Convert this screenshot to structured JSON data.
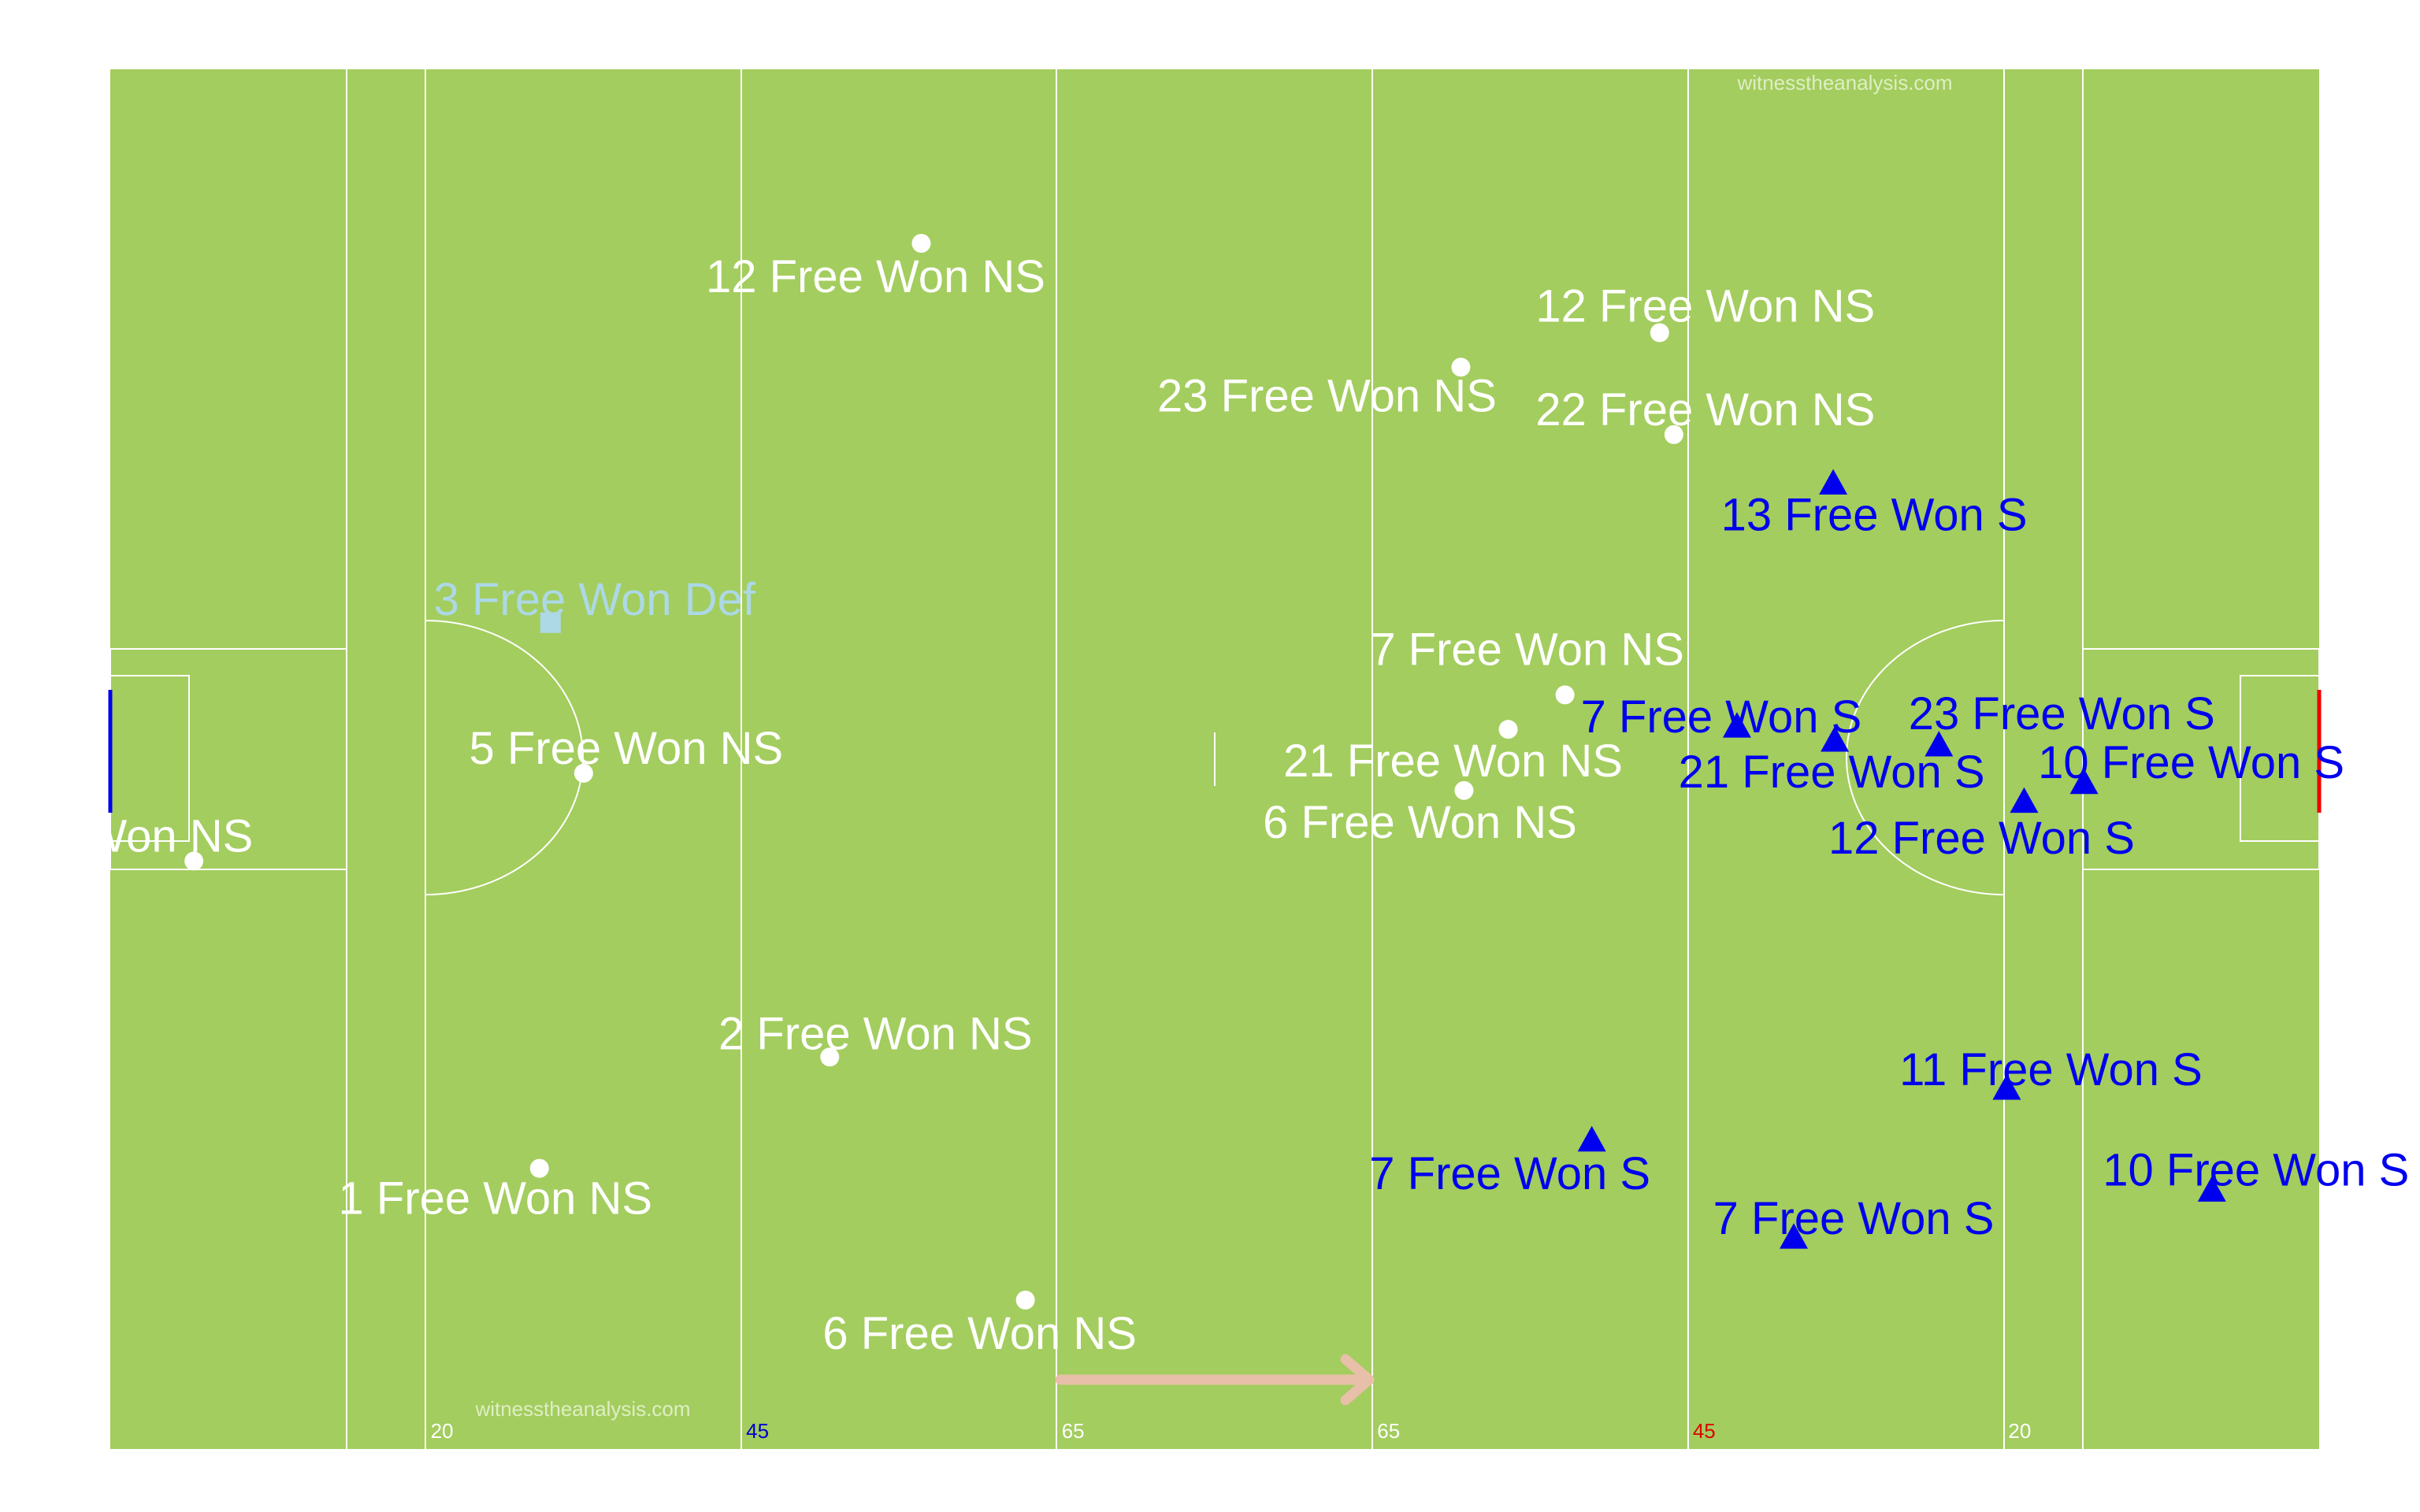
{
  "watermarks": {
    "top": "witnesstheanalysis.com",
    "bottom": "witnesstheanalysis.com"
  },
  "colors": {
    "pitch": "#a3cd5e",
    "lines": "#ffffff",
    "non_score": "#ffffff",
    "score": "#0000ee",
    "defensive": "#add8e6",
    "left_goal": "#0000ee",
    "right_goal": "#ee0000",
    "direction_arrow": "#e8bfa8",
    "tick_white": "#ffffff",
    "tick_blue": "#0000cc",
    "tick_red": "#dd0000"
  },
  "chart_data": {
    "type": "scatter",
    "title": "",
    "xlabel": "",
    "ylabel": "",
    "xlim": [
      0,
      140
    ],
    "ylim": [
      0,
      88
    ],
    "distance_markers": [
      {
        "x": 20,
        "label": "20",
        "color": "white"
      },
      {
        "x": 40,
        "label": "45",
        "color": "blue"
      },
      {
        "x": 60,
        "label": "65",
        "color": "white"
      },
      {
        "x": 80,
        "label": "65",
        "color": "white"
      },
      {
        "x": 100,
        "label": "45",
        "color": "red"
      },
      {
        "x": 120,
        "label": "20",
        "color": "white"
      }
    ],
    "direction": "left-to-right",
    "series": [
      {
        "marker": "circle",
        "points": [
          {
            "x": 51.4,
            "y": 76.9,
            "label": "12 Free Won NS"
          },
          {
            "x": 98.2,
            "y": 71.2,
            "label": "12 Free Won NS"
          },
          {
            "x": 85.6,
            "y": 69.0,
            "label": "23 Free Won NS"
          },
          {
            "x": 99.1,
            "y": 64.7,
            "label": "22 Free Won NS"
          },
          {
            "x": 92.2,
            "y": 48.1,
            "label": "7 Free Won NS"
          },
          {
            "x": 88.6,
            "y": 45.9,
            "label": "21 Free Won NS"
          },
          {
            "x": 85.8,
            "y": 42.0,
            "label": "6 Free Won NS"
          },
          {
            "x": 30.0,
            "y": 43.1,
            "label": "5 Free Won NS"
          },
          {
            "x": 5.3,
            "y": 37.5,
            "label": "Free Won NS"
          },
          {
            "x": 45.6,
            "y": 25.0,
            "label": "2 Free Won NS"
          },
          {
            "x": 27.2,
            "y": 17.9,
            "label": "1 Free Won NS"
          },
          {
            "x": 58.0,
            "y": 9.5,
            "label": "6 Free Won NS"
          }
        ]
      },
      {
        "marker": "triangle",
        "points": [
          {
            "x": 109.2,
            "y": 61.6,
            "label": "13 Free Won S"
          },
          {
            "x": 103.1,
            "y": 46.1,
            "label": "7 Free Won S"
          },
          {
            "x": 109.3,
            "y": 45.2,
            "label": "21 Free Won S"
          },
          {
            "x": 115.9,
            "y": 44.9,
            "label": "23 Free Won S"
          },
          {
            "x": 121.3,
            "y": 41.3,
            "label": "12 Free Won S"
          },
          {
            "x": 125.1,
            "y": 42.5,
            "label": "10 Free Won S"
          },
          {
            "x": 120.2,
            "y": 23.0,
            "label": "11 Free Won S"
          },
          {
            "x": 93.9,
            "y": 19.7,
            "label": "7 Free Won S"
          },
          {
            "x": 106.7,
            "y": 13.5,
            "label": "7 Free Won S"
          },
          {
            "x": 133.2,
            "y": 16.5,
            "label": "10 Free Won S"
          }
        ]
      },
      {
        "marker": "square",
        "points": [
          {
            "x": 27.9,
            "y": 52.7,
            "label": "3 Free Won Def"
          }
        ]
      }
    ]
  }
}
